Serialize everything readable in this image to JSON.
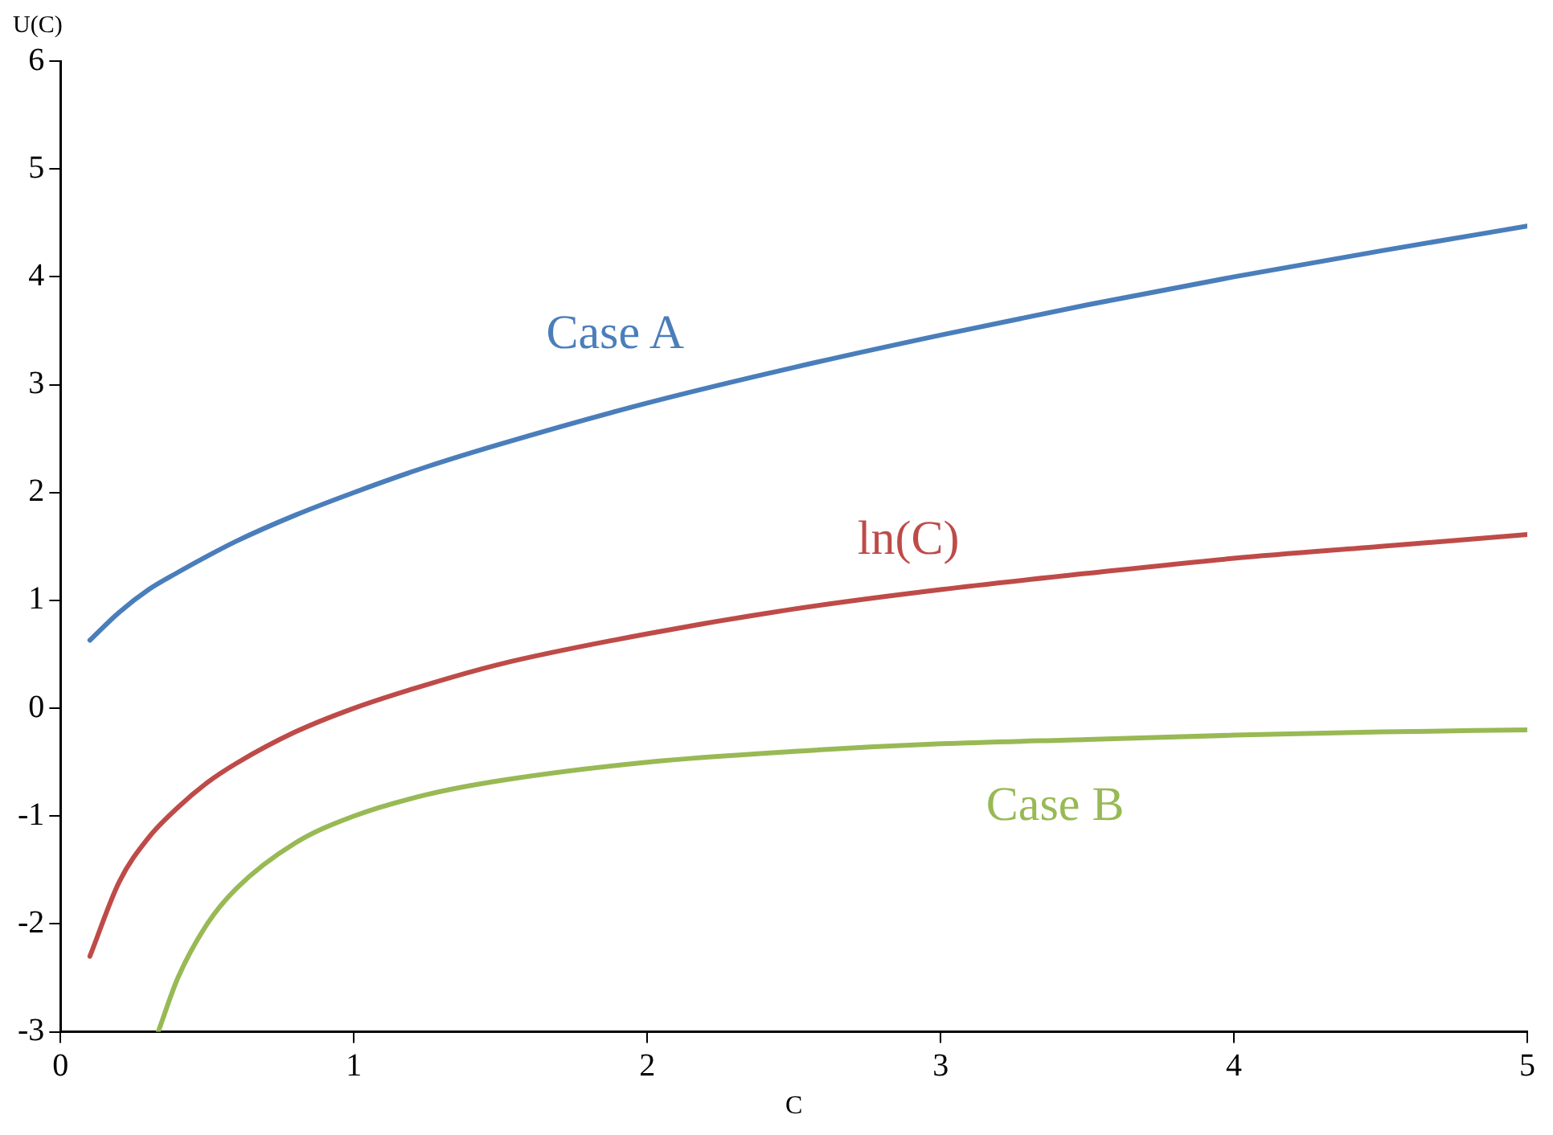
{
  "chart_data": {
    "type": "line",
    "xlabel": "C",
    "ylabel": "U(C)",
    "xlim": [
      0,
      5
    ],
    "xticks": [
      0,
      1,
      2,
      3,
      4,
      5
    ],
    "ylim": [
      -3,
      6
    ],
    "yticks": [
      -3,
      -2,
      -1,
      0,
      1,
      2,
      3,
      4,
      5,
      6
    ],
    "grid": false,
    "legend": false,
    "marker": "none",
    "line_style": "solid",
    "series": [
      {
        "name": "Case A",
        "color": "#4a7ebb",
        "x": [
          0.1,
          0.2,
          0.3,
          0.4,
          0.5,
          0.6,
          0.8,
          1,
          1.25,
          1.5,
          2,
          2.5,
          3,
          3.5,
          4,
          4.5,
          5
        ],
        "values": [
          0.63,
          0.89,
          1.1,
          1.26,
          1.41,
          1.55,
          1.79,
          2,
          2.24,
          2.45,
          2.83,
          3.16,
          3.46,
          3.74,
          4,
          4.24,
          4.47
        ]
      },
      {
        "name": "ln(C)",
        "color": "#be4b48",
        "x": [
          0.1,
          0.2,
          0.3,
          0.4,
          0.5,
          0.6,
          0.8,
          1,
          1.25,
          1.5,
          2,
          2.5,
          3,
          3.5,
          4,
          4.5,
          5
        ],
        "values": [
          -2.3,
          -1.61,
          -1.2,
          -0.92,
          -0.69,
          -0.51,
          -0.22,
          0,
          0.22,
          0.41,
          0.69,
          0.92,
          1.1,
          1.25,
          1.39,
          1.5,
          1.61
        ]
      },
      {
        "name": "Case B",
        "color": "#98b954",
        "x": [
          0.333,
          0.4,
          0.5,
          0.6,
          0.8,
          1,
          1.25,
          1.5,
          2,
          2.5,
          3,
          3.5,
          4,
          4.5,
          5
        ],
        "values": [
          -3,
          -2.5,
          -2,
          -1.67,
          -1.25,
          -1,
          -0.8,
          -0.67,
          -0.5,
          -0.4,
          -0.33,
          -0.29,
          -0.25,
          -0.22,
          -0.2
        ]
      }
    ]
  }
}
